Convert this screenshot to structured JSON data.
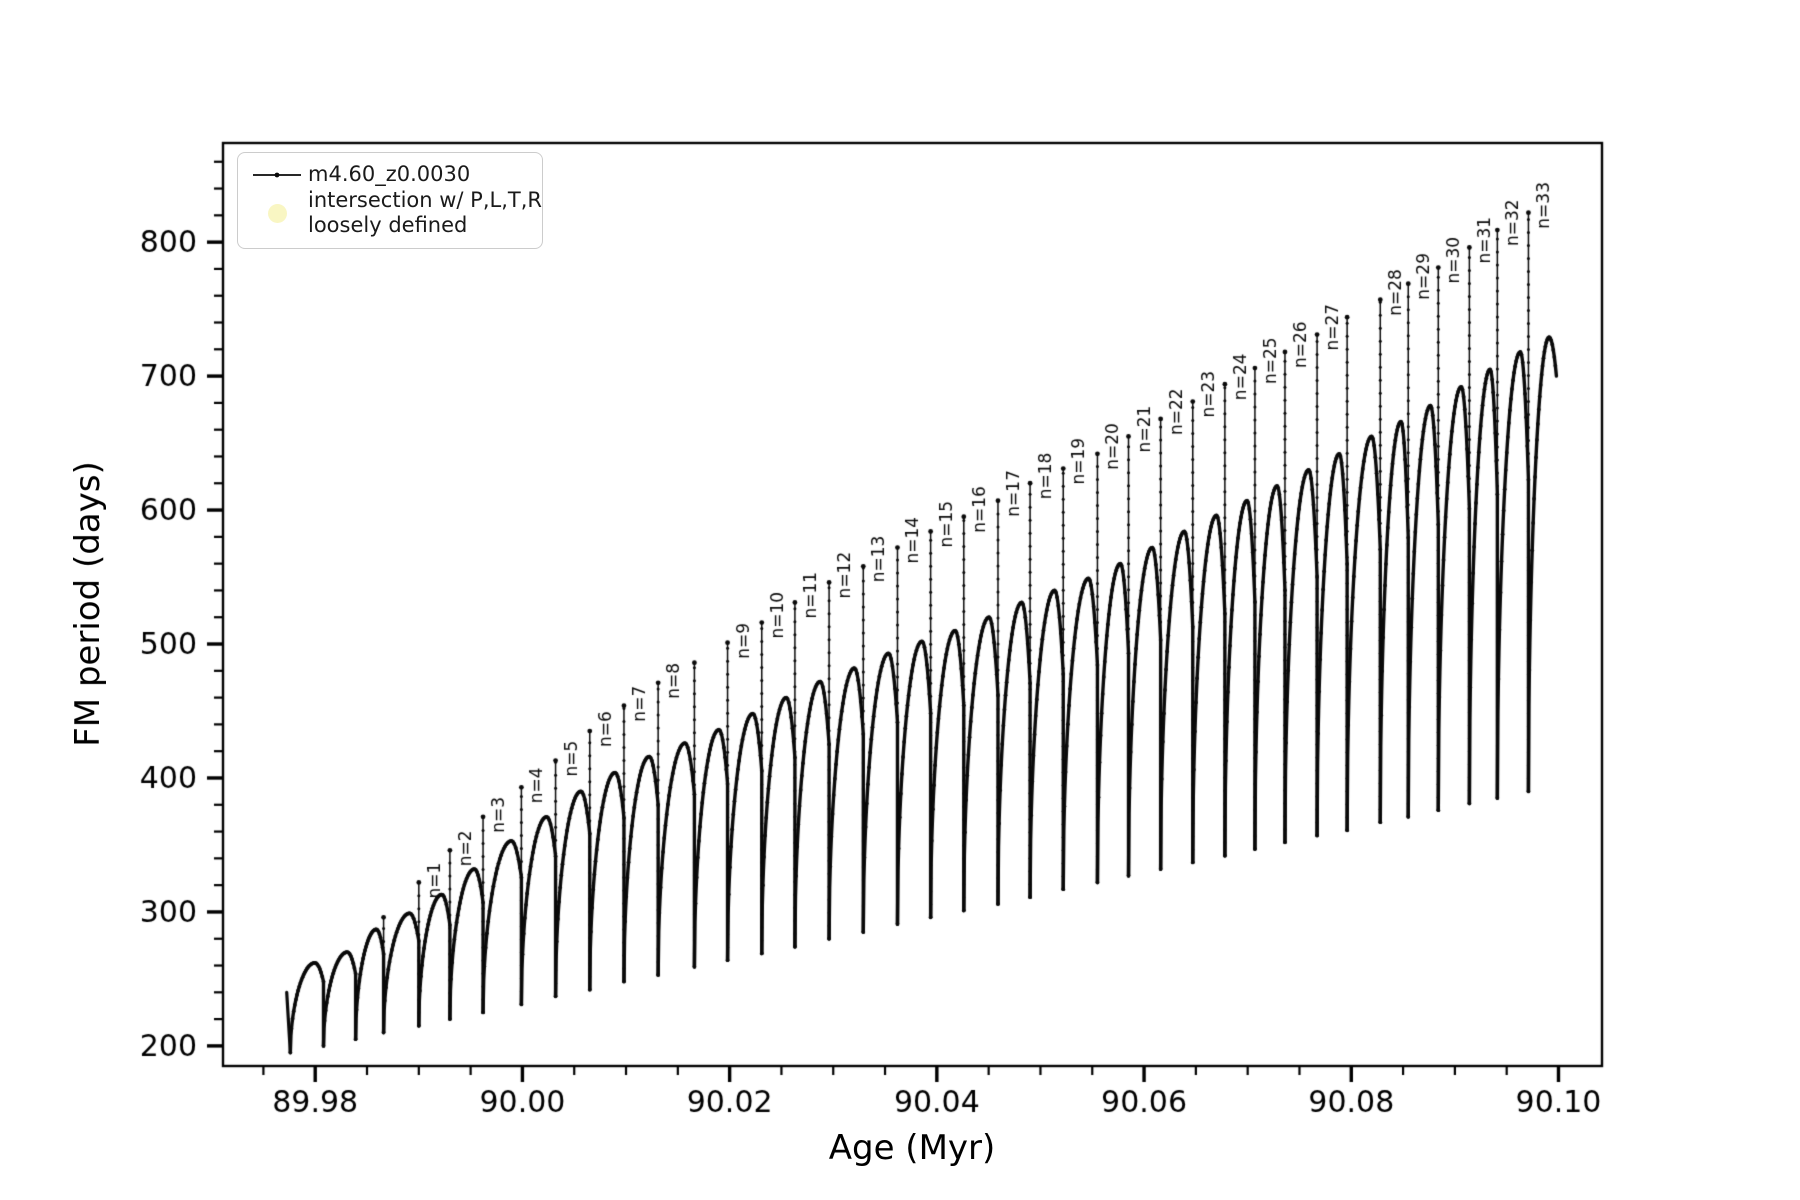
{
  "figure": {
    "background": "#ffffff",
    "line_color": "#0a0a0a",
    "tick_color": "#000000"
  },
  "legend": {
    "series_label": "m4.60_z0.0030",
    "intersection_label_line1": "intersection w/ P,L,T,R",
    "intersection_label_line2": "loosely defined",
    "intersection_marker_color": "#f9f6c3"
  },
  "chart_data": {
    "type": "line",
    "title": "",
    "xlabel": "Age (Myr)",
    "ylabel": "FM period (days)",
    "series_name": "m4.60_z0.0030",
    "xlim": [
      89.9711,
      90.1042
    ],
    "ylim": [
      185,
      874
    ],
    "grid": false,
    "legend_position": "upper left",
    "x_tick_values": [
      89.98,
      90.0,
      90.02,
      90.04,
      90.06,
      90.08,
      90.1
    ],
    "x_tick_labels": [
      "89.98",
      "90.00",
      "90.02",
      "90.04",
      "90.06",
      "90.08",
      "90.10"
    ],
    "x_minor_step": 0.005,
    "y_tick_values": [
      200,
      300,
      400,
      500,
      600,
      700,
      800
    ],
    "y_tick_labels": [
      "200",
      "300",
      "400",
      "500",
      "600",
      "700",
      "800"
    ],
    "y_minor_step": 20,
    "start_point": [
      89.97725,
      240
    ],
    "end_value": 700,
    "cycle_boundaries": [
      89.9776,
      89.9808,
      89.9839,
      89.9866,
      89.99,
      89.993,
      89.9962,
      89.9999,
      90.0032,
      90.0065,
      90.0098,
      90.0131,
      90.0166,
      90.0198,
      90.0231,
      90.0263,
      90.0296,
      90.0329,
      90.0362,
      90.0394,
      90.0426,
      90.0459,
      90.049,
      90.0522,
      90.0555,
      90.0585,
      90.0616,
      90.0647,
      90.0678,
      90.0707,
      90.0736,
      90.0767,
      90.0796,
      90.0828,
      90.0855,
      90.0884,
      90.0914,
      90.0941,
      90.0971,
      90.0998
    ],
    "dip_values": [
      195,
      200,
      205,
      210,
      215,
      220,
      225,
      231,
      237,
      242,
      248,
      253,
      259,
      264,
      269,
      274,
      280,
      285,
      291,
      296,
      301,
      306,
      311,
      317,
      322,
      327,
      332,
      337,
      342,
      347,
      352,
      357,
      361,
      367,
      371,
      376,
      381,
      385,
      390
    ],
    "arch_peak_values": [
      262,
      270,
      287,
      299,
      313,
      332,
      353,
      371,
      390,
      404,
      416,
      426,
      436,
      448,
      460,
      472,
      482,
      493,
      502,
      510,
      520,
      531,
      540,
      549,
      560,
      572,
      584,
      596,
      607,
      618,
      630,
      642,
      655,
      666,
      678,
      692,
      705,
      718,
      729
    ],
    "spikes": [
      {
        "boundary_index": 3,
        "peak": 296,
        "label": ""
      },
      {
        "boundary_index": 4,
        "peak": 322,
        "label": "n=1"
      },
      {
        "boundary_index": 5,
        "peak": 346,
        "label": "n=2"
      },
      {
        "boundary_index": 6,
        "peak": 371,
        "label": "n=3"
      },
      {
        "boundary_index": 7,
        "peak": 393,
        "label": "n=4"
      },
      {
        "boundary_index": 8,
        "peak": 413,
        "label": "n=5"
      },
      {
        "boundary_index": 9,
        "peak": 435,
        "label": "n=6"
      },
      {
        "boundary_index": 10,
        "peak": 454,
        "label": "n=7"
      },
      {
        "boundary_index": 11,
        "peak": 471,
        "label": "n=8"
      },
      {
        "boundary_index": 12,
        "peak": 486,
        "label": ""
      },
      {
        "boundary_index": 13,
        "peak": 501,
        "label": "n=9"
      },
      {
        "boundary_index": 14,
        "peak": 516,
        "label": "n=10"
      },
      {
        "boundary_index": 15,
        "peak": 531,
        "label": "n=11"
      },
      {
        "boundary_index": 16,
        "peak": 546,
        "label": "n=12"
      },
      {
        "boundary_index": 17,
        "peak": 558,
        "label": "n=13"
      },
      {
        "boundary_index": 18,
        "peak": 572,
        "label": "n=14"
      },
      {
        "boundary_index": 19,
        "peak": 584,
        "label": "n=15"
      },
      {
        "boundary_index": 20,
        "peak": 595,
        "label": "n=16"
      },
      {
        "boundary_index": 21,
        "peak": 607,
        "label": "n=17"
      },
      {
        "boundary_index": 22,
        "peak": 620,
        "label": "n=18"
      },
      {
        "boundary_index": 23,
        "peak": 631,
        "label": "n=19"
      },
      {
        "boundary_index": 24,
        "peak": 642,
        "label": "n=20"
      },
      {
        "boundary_index": 25,
        "peak": 655,
        "label": "n=21"
      },
      {
        "boundary_index": 26,
        "peak": 668,
        "label": "n=22"
      },
      {
        "boundary_index": 27,
        "peak": 681,
        "label": "n=23"
      },
      {
        "boundary_index": 28,
        "peak": 694,
        "label": "n=24"
      },
      {
        "boundary_index": 29,
        "peak": 706,
        "label": "n=25"
      },
      {
        "boundary_index": 30,
        "peak": 718,
        "label": "n=26"
      },
      {
        "boundary_index": 31,
        "peak": 731,
        "label": "n=27"
      },
      {
        "boundary_index": 32,
        "peak": 744,
        "label": ""
      },
      {
        "boundary_index": 33,
        "peak": 757,
        "label": "n=28"
      },
      {
        "boundary_index": 34,
        "peak": 769,
        "label": "n=29"
      },
      {
        "boundary_index": 35,
        "peak": 781,
        "label": "n=30"
      },
      {
        "boundary_index": 36,
        "peak": 796,
        "label": "n=31"
      },
      {
        "boundary_index": 37,
        "peak": 809,
        "label": "n=32"
      },
      {
        "boundary_index": 38,
        "peak": 822,
        "label": "n=33"
      }
    ]
  }
}
